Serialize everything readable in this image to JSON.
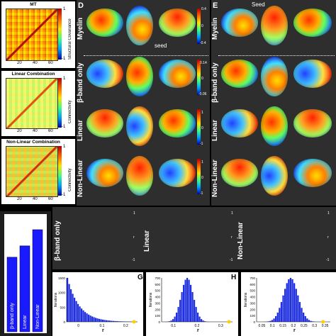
{
  "panel_letters": {
    "d": "D",
    "e": "E",
    "g": "G",
    "h": "H"
  },
  "left_column": {
    "mt": {
      "title": "MT",
      "colorbar_label": "Structural Covariance",
      "cbar_top": "1",
      "cbar_bottom": "-1",
      "ticks": [
        "20",
        "40",
        "60"
      ]
    },
    "linear": {
      "title": "Linear Combination",
      "colorbar_label": "Connectivity",
      "cbar_top": "1",
      "cbar_bottom": "-1",
      "ticks": [
        "20",
        "40",
        "60"
      ]
    },
    "nonlinear": {
      "title": "Non-Linear Combination",
      "colorbar_label": "Connectivity",
      "cbar_top": "1",
      "cbar_bottom": "-1",
      "ticks": [
        "20",
        "40",
        "60"
      ]
    }
  },
  "row_labels": {
    "myelin": "Myelin",
    "beta": "β-band only",
    "linear": "Linear",
    "nonlinear": "Non-Linear"
  },
  "seed_labels": {
    "d": "seed",
    "e": "Seed"
  },
  "colorbars_d": {
    "myelin": [
      "0.4",
      "0",
      "-0.4"
    ],
    "beta": [
      "0.14",
      "0",
      "-0.06"
    ],
    "linear": [
      "1",
      "0",
      "-1"
    ],
    "nonlinear": [
      "1",
      "0",
      "-1"
    ]
  },
  "colorbars_bottom": {
    "top": "1",
    "mid": "r",
    "bottom": "-1"
  },
  "colorbar_r_label": "r",
  "bar_chart_labels": {
    "bar1": "β-band only",
    "bar2": "Linear",
    "bar3": "Non-Linear"
  },
  "bottom_brains": {
    "beta": "β-band only",
    "linear": "Linear",
    "nonlinear": "Non-Linear"
  },
  "chart_data": [
    {
      "type": "bar",
      "categories": [
        "β-band only",
        "Linear",
        "Non-Linear"
      ],
      "values": [
        0.23,
        0.265,
        0.315
      ],
      "ylim": [
        0,
        0.35
      ]
    },
    {
      "type": "bar",
      "title": "G",
      "ylabel": "Iterations",
      "xlabel": "r",
      "xticks": [
        "0",
        "0.1",
        "0.2"
      ],
      "yticks": [
        "0",
        "500",
        "1000",
        "1500"
      ],
      "ymax_label": "1600"
    },
    {
      "type": "bar",
      "title": "H",
      "ylabel": "Iterations",
      "xlabel": "r",
      "xticks": [
        "0.1",
        "0.2",
        "0.3"
      ],
      "yticks": [
        "0",
        "100",
        "200",
        "300",
        "400",
        "500",
        "600",
        "700"
      ]
    },
    {
      "type": "bar",
      "ylabel": "Iterations",
      "xlabel": "r",
      "xticks": [
        "0.05",
        "0.1",
        "0.15",
        "0.2",
        "0.25",
        "0.3",
        "0.35"
      ],
      "yticks": [
        "0",
        "100",
        "200",
        "300",
        "400",
        "500",
        "600",
        "700"
      ]
    }
  ]
}
